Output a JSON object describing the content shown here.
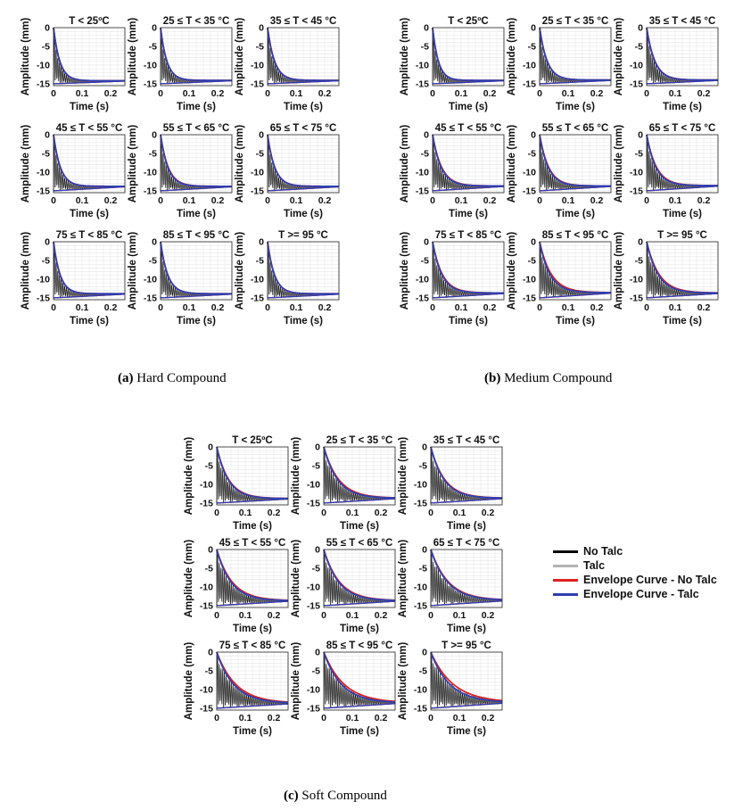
{
  "chart_data": [
    {
      "type": "line",
      "panel_title_group": "Hard Compound",
      "caption": {
        "letter": "(a)",
        "text": "Hard Compound"
      },
      "xlabel": "Time (s)",
      "ylabel": "Amplitude (mm)",
      "xlim": [
        0,
        0.25
      ],
      "ylim": [
        -15.5,
        0
      ],
      "xticks": [
        "0",
        "0.1",
        "0.2"
      ],
      "yticks": [
        "0",
        "-5",
        "-10",
        "-15"
      ],
      "grid": true,
      "panels": [
        {
          "title": "T < 25ºC",
          "decay": 0.022,
          "base": -14.2,
          "noTalcScale": 1.0
        },
        {
          "title": "25 ≤ T < 35 °C",
          "decay": 0.022,
          "base": -14.1,
          "noTalcScale": 1.0
        },
        {
          "title": "35 ≤ T < 45 °C",
          "decay": 0.024,
          "base": -14.1,
          "noTalcScale": 1.02
        },
        {
          "title": "45 ≤ T < 55 °C",
          "decay": 0.024,
          "base": -13.8,
          "noTalcScale": 1.0
        },
        {
          "title": "55 ≤ T < 65 °C",
          "decay": 0.026,
          "base": -13.8,
          "noTalcScale": 1.04
        },
        {
          "title": "65 ≤ T < 75 °C",
          "decay": 0.025,
          "base": -13.8,
          "noTalcScale": 1.0
        },
        {
          "title": "75 ≤ T < 85 °C",
          "decay": 0.023,
          "base": -13.9,
          "noTalcScale": 1.0
        },
        {
          "title": "85 ≤ T < 95 °C",
          "decay": 0.025,
          "base": -13.9,
          "noTalcScale": 1.0
        },
        {
          "title": "T >= 95 °C",
          "decay": 0.024,
          "base": -13.9,
          "noTalcScale": 1.0
        }
      ]
    },
    {
      "type": "line",
      "panel_title_group": "Medium Compound",
      "caption": {
        "letter": "(b)",
        "text": "Medium Compound"
      },
      "xlabel": "Time (s)",
      "ylabel": "Amplitude (mm)",
      "xlim": [
        0,
        0.25
      ],
      "ylim": [
        -15.5,
        0
      ],
      "xticks": [
        "0",
        "0.1",
        "0.2"
      ],
      "yticks": [
        "0",
        "-5",
        "-10",
        "-15"
      ],
      "grid": true,
      "panels": [
        {
          "title": "T < 25ºC",
          "decay": 0.02,
          "base": -14.1,
          "noTalcScale": 1.0
        },
        {
          "title": "25 ≤ T < 35 °C",
          "decay": 0.026,
          "base": -14.0,
          "noTalcScale": 1.0
        },
        {
          "title": "35 ≤ T < 45 °C",
          "decay": 0.028,
          "base": -14.0,
          "noTalcScale": 1.02
        },
        {
          "title": "45 ≤ T < 55 °C",
          "decay": 0.03,
          "base": -13.7,
          "noTalcScale": 1.05
        },
        {
          "title": "55 ≤ T < 65 °C",
          "decay": 0.03,
          "base": -13.7,
          "noTalcScale": 1.05
        },
        {
          "title": "65 ≤ T < 75 °C",
          "decay": 0.032,
          "base": -13.6,
          "noTalcScale": 1.06
        },
        {
          "title": "75 ≤ T < 85 °C",
          "decay": 0.032,
          "base": -13.7,
          "noTalcScale": 1.06
        },
        {
          "title": "85 ≤ T < 95 °C",
          "decay": 0.036,
          "base": -13.6,
          "noTalcScale": 1.12
        },
        {
          "title": "T >= 95 °C",
          "decay": 0.04,
          "base": -13.7,
          "noTalcScale": 1.08
        }
      ]
    },
    {
      "type": "line",
      "panel_title_group": "Soft Compound",
      "caption": {
        "letter": "(c)",
        "text": "Soft Compound"
      },
      "xlabel": "Time (s)",
      "ylabel": "Amplitude (mm)",
      "xlim": [
        0,
        0.25
      ],
      "ylim": [
        -15.5,
        0
      ],
      "xticks": [
        "0",
        "0.1",
        "0.2"
      ],
      "yticks": [
        "0",
        "-5",
        "-10",
        "-15"
      ],
      "grid": true,
      "panels": [
        {
          "title": "T < 25ºC",
          "decay": 0.04,
          "base": -13.8,
          "noTalcScale": 1.05
        },
        {
          "title": "25 ≤ T < 35 °C",
          "decay": 0.048,
          "base": -13.7,
          "noTalcScale": 1.08
        },
        {
          "title": "35 ≤ T < 45 °C",
          "decay": 0.046,
          "base": -13.7,
          "noTalcScale": 1.05
        },
        {
          "title": "45 ≤ T < 55 °C",
          "decay": 0.05,
          "base": -13.7,
          "noTalcScale": 1.08
        },
        {
          "title": "55 ≤ T < 65 °C",
          "decay": 0.052,
          "base": -13.7,
          "noTalcScale": 1.06
        },
        {
          "title": "65 ≤ T < 75 °C",
          "decay": 0.058,
          "base": -13.6,
          "noTalcScale": 1.05
        },
        {
          "title": "75 ≤ T < 85 °C",
          "decay": 0.06,
          "base": -13.7,
          "noTalcScale": 1.12
        },
        {
          "title": "85 ≤ T < 95 °C",
          "decay": 0.062,
          "base": -13.6,
          "noTalcScale": 1.15
        },
        {
          "title": "T >= 95 °C",
          "decay": 0.066,
          "base": -13.5,
          "noTalcScale": 1.18
        }
      ]
    }
  ],
  "legend": {
    "placement": "right",
    "items": [
      {
        "label": "No Talc",
        "color": "#000000"
      },
      {
        "label": "Talc",
        "color": "#b3b3b3"
      },
      {
        "label": "Envelope Curve - No Talc",
        "color": "#e02020"
      },
      {
        "label": "Envelope Curve - Talc",
        "color": "#2e3fb0"
      }
    ]
  },
  "colors": {
    "noTalc": "#000000",
    "talc": "#b3b3b3",
    "envNoTalc": "#e02020",
    "envTalc": "#2e3fb0",
    "grid": "#e6e6e6"
  }
}
